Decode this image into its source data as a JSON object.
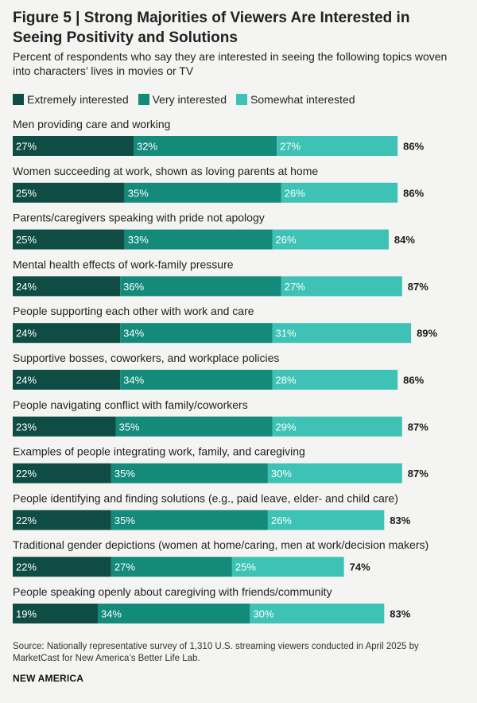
{
  "header": {
    "title": "Figure 5 | Strong Majorities of Viewers Are Interested in Seeing Positivity and Solutions",
    "subtitle": "Percent of respondents who say they are interested in seeing the following topics woven into characters’ lives in movies or TV"
  },
  "footer": {
    "source": "Source: Nationally representative survey of 1,310 U.S. streaming viewers conducted in April 2025 by MarketCast for New America’s Better Life Lab.",
    "brand": "NEW AMERICA"
  },
  "colors": {
    "extremely": "#0f4d44",
    "very": "#148a7b",
    "somewhat": "#3ec2b5",
    "bar_text": "#ffffff",
    "total_text": "#1a1a1a",
    "label_text": "#222222",
    "background": "#f4f4f2"
  },
  "chart_data": {
    "type": "bar",
    "orientation": "horizontal",
    "stacked": true,
    "categories": [
      "Men providing care and working",
      "Women succeeding at work, shown as loving parents at home",
      "Parents/caregivers speaking with pride not apology",
      "Mental health effects of work-family pressure",
      "People supporting each other with work and care",
      "Supportive bosses, coworkers, and workplace policies",
      "People navigating conflict with family/coworkers",
      "Examples of people integrating work, family, and caregiving",
      "People identifying and finding solutions (e.g., paid leave, elder- and child care)",
      "Traditional gender depictions (women at home/caring, men at work/decision makers)",
      "People speaking openly about caregiving with friends/community"
    ],
    "series": [
      {
        "name": "Extremely interested",
        "values": [
          27,
          25,
          25,
          24,
          24,
          24,
          23,
          22,
          22,
          22,
          19
        ]
      },
      {
        "name": "Very interested",
        "values": [
          32,
          35,
          33,
          36,
          34,
          34,
          35,
          35,
          35,
          27,
          34
        ]
      },
      {
        "name": "Somewhat interested",
        "values": [
          27,
          26,
          26,
          27,
          31,
          28,
          29,
          30,
          26,
          25,
          30
        ]
      }
    ],
    "totals": [
      86,
      86,
      84,
      87,
      89,
      86,
      87,
      87,
      83,
      74,
      83
    ],
    "unit": "%",
    "legend_position": "top-left",
    "grid": false
  }
}
